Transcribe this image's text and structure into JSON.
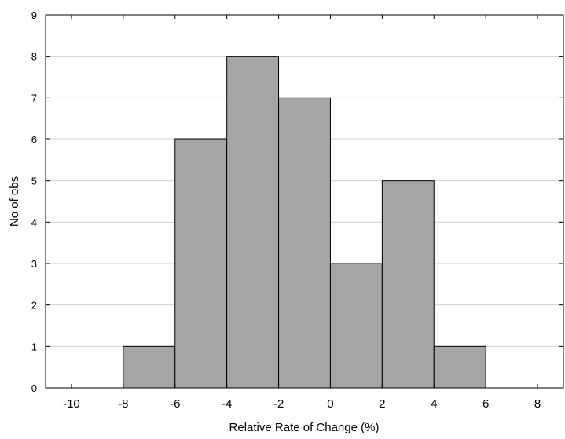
{
  "chart_data": {
    "type": "bar",
    "subtype": "histogram",
    "bins": [
      {
        "from": -10,
        "to": -8,
        "count": 0
      },
      {
        "from": -8,
        "to": -6,
        "count": 1
      },
      {
        "from": -6,
        "to": -4,
        "count": 6
      },
      {
        "from": -4,
        "to": -2,
        "count": 8
      },
      {
        "from": -2,
        "to": 0,
        "count": 7
      },
      {
        "from": 0,
        "to": 2,
        "count": 3
      },
      {
        "from": 2,
        "to": 4,
        "count": 5
      },
      {
        "from": 4,
        "to": 6,
        "count": 1
      },
      {
        "from": 6,
        "to": 8,
        "count": 0
      }
    ],
    "title": "",
    "xlabel": "Relative Rate of Change (%)",
    "ylabel": "No of obs",
    "xlim": [
      -11,
      9
    ],
    "ylim": [
      0,
      9
    ],
    "x_ticks": [
      "-10",
      "-8",
      "-6",
      "-4",
      "-2",
      "0",
      "2",
      "4",
      "6",
      "8"
    ],
    "y_ticks": [
      "0",
      "1",
      "2",
      "3",
      "4",
      "5",
      "6",
      "7",
      "8",
      "9"
    ],
    "grid": "horizontal",
    "legend": "none",
    "colors": {
      "bar_fill": "#a5a5a5",
      "bar_stroke": "#000000",
      "grid": "#d0d0d0",
      "axis": "#000000"
    }
  }
}
